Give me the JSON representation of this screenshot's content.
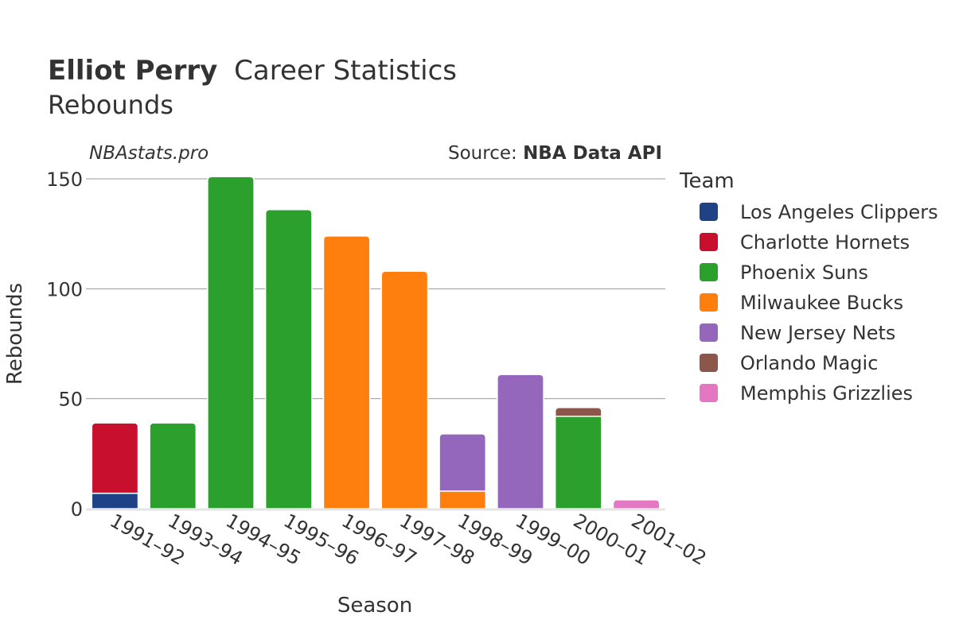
{
  "chart_data": {
    "type": "bar",
    "stacked": true,
    "title_bold": "Elliot Perry",
    "title_rest": "Career Statistics",
    "subtitle": "Rebounds",
    "watermark": "NBAstats.pro",
    "source_prefix": "Source: ",
    "source_name": "NBA Data API",
    "xlabel": "Season",
    "ylabel": "Rebounds",
    "ylim": [
      0,
      155
    ],
    "yticks": [
      0,
      50,
      100,
      150
    ],
    "grid": true,
    "legend_title": "Team",
    "legend_position": "right",
    "categories": [
      "1991–92",
      "1993–94",
      "1994–95",
      "1995–96",
      "1996–97",
      "1997–98",
      "1998–99",
      "1999–00",
      "2000–01",
      "2001–02"
    ],
    "series": [
      {
        "name": "Los Angeles Clippers",
        "color": "#1f4287",
        "values": [
          7,
          0,
          0,
          0,
          0,
          0,
          0,
          0,
          0,
          0
        ]
      },
      {
        "name": "Charlotte Hornets",
        "color": "#c8102e",
        "values": [
          32,
          0,
          0,
          0,
          0,
          0,
          0,
          0,
          0,
          0
        ]
      },
      {
        "name": "Phoenix Suns",
        "color": "#2ca02c",
        "values": [
          0,
          39,
          151,
          136,
          0,
          0,
          0,
          0,
          42,
          0
        ]
      },
      {
        "name": "Milwaukee Bucks",
        "color": "#ff7f0e",
        "values": [
          0,
          0,
          0,
          0,
          124,
          108,
          8,
          0,
          0,
          0
        ]
      },
      {
        "name": "New Jersey Nets",
        "color": "#9467bd",
        "values": [
          0,
          0,
          0,
          0,
          0,
          0,
          26,
          61,
          0,
          0
        ]
      },
      {
        "name": "Orlando Magic",
        "color": "#8c564b",
        "values": [
          0,
          0,
          0,
          0,
          0,
          0,
          0,
          0,
          4,
          0
        ]
      },
      {
        "name": "Memphis Grizzlies",
        "color": "#e377c2",
        "values": [
          0,
          0,
          0,
          0,
          0,
          0,
          0,
          0,
          0,
          4
        ]
      }
    ]
  }
}
